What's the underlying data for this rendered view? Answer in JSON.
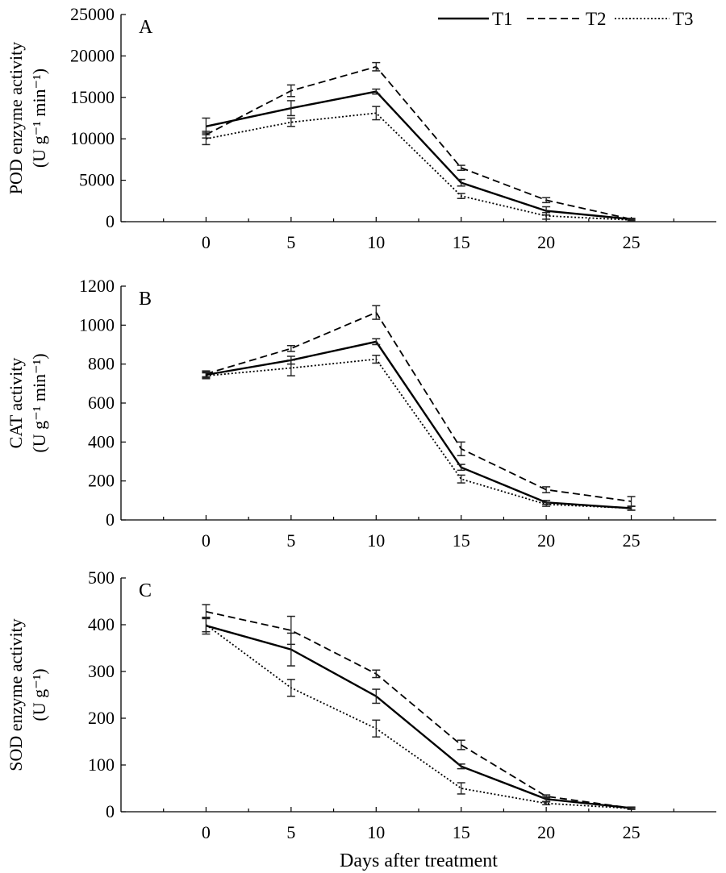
{
  "chart_data": [
    {
      "type": "line",
      "panel_label": "A",
      "ylabel": "POD enzyme activity",
      "ylabel_unit": "(U g⁻¹ min⁻¹)",
      "ylim": [
        0,
        25000
      ],
      "yticks": [
        0,
        5000,
        10000,
        15000,
        20000,
        25000
      ],
      "ytick_labels": [
        "0",
        "5000",
        "10000",
        "15000",
        "20000",
        "25000"
      ],
      "xticks": [
        0,
        5,
        10,
        15,
        20,
        25
      ],
      "xtick_labels": [
        "0",
        "5",
        "10",
        "15",
        "20",
        "25"
      ],
      "x": [
        0,
        5,
        10,
        15,
        20,
        25
      ],
      "series": [
        {
          "name": "T1",
          "values": [
            11500,
            13700,
            15700,
            4700,
            1300,
            300
          ],
          "errors": [
            1000,
            900,
            300,
            400,
            500,
            100
          ]
        },
        {
          "name": "T2",
          "values": [
            10500,
            15800,
            18700,
            6500,
            2600,
            300
          ],
          "errors": [
            400,
            700,
            500,
            300,
            300,
            100
          ]
        },
        {
          "name": "T3",
          "values": [
            10000,
            12000,
            13100,
            3100,
            700,
            200
          ],
          "errors": [
            700,
            500,
            800,
            300,
            400,
            100
          ]
        }
      ]
    },
    {
      "type": "line",
      "panel_label": "B",
      "ylabel": "CAT activity",
      "ylabel_unit": "(U g⁻¹ min⁻¹)",
      "ylim": [
        0,
        1200
      ],
      "yticks": [
        0,
        200,
        400,
        600,
        800,
        1000,
        1200
      ],
      "ytick_labels": [
        "0",
        "200",
        "400",
        "600",
        "800",
        "1000",
        "1200"
      ],
      "xticks": [
        0,
        5,
        10,
        15,
        20,
        25
      ],
      "xtick_labels": [
        "0",
        "5",
        "10",
        "15",
        "20",
        "25"
      ],
      "x": [
        0,
        5,
        10,
        15,
        20,
        25
      ],
      "series": [
        {
          "name": "T1",
          "values": [
            745,
            820,
            915,
            270,
            90,
            60
          ],
          "errors": [
            15,
            20,
            15,
            15,
            10,
            10
          ]
        },
        {
          "name": "T2",
          "values": [
            750,
            880,
            1065,
            365,
            155,
            95
          ],
          "errors": [
            15,
            15,
            35,
            35,
            15,
            25
          ]
        },
        {
          "name": "T3",
          "values": [
            740,
            780,
            825,
            210,
            80,
            60
          ],
          "errors": [
            15,
            40,
            20,
            20,
            10,
            10
          ]
        }
      ]
    },
    {
      "type": "line",
      "panel_label": "C",
      "ylabel": "SOD enzyme activity",
      "ylabel_unit": "(U g⁻¹)",
      "ylim": [
        0,
        500
      ],
      "yticks": [
        0,
        100,
        200,
        300,
        400,
        500
      ],
      "ytick_labels": [
        "0",
        "100",
        "200",
        "300",
        "400",
        "500"
      ],
      "xticks": [
        0,
        5,
        10,
        15,
        20,
        25
      ],
      "xtick_labels": [
        "0",
        "5",
        "10",
        "15",
        "20",
        "25"
      ],
      "x": [
        0,
        5,
        10,
        15,
        20,
        25
      ],
      "xlabel": "Days after treatment",
      "series": [
        {
          "name": "T1",
          "values": [
            398,
            347,
            247,
            97,
            27,
            8
          ],
          "errors": [
            18,
            35,
            15,
            5,
            5,
            2
          ]
        },
        {
          "name": "T2",
          "values": [
            428,
            388,
            295,
            143,
            33,
            8
          ],
          "errors": [
            15,
            30,
            8,
            10,
            3,
            2
          ]
        },
        {
          "name": "T3",
          "values": [
            400,
            265,
            178,
            50,
            18,
            7
          ],
          "errors": [
            15,
            18,
            18,
            12,
            3,
            2
          ]
        }
      ]
    }
  ],
  "legend": {
    "position": "top-right",
    "items": [
      {
        "name": "T1",
        "dash": "solid"
      },
      {
        "name": "T2",
        "dash": "dashed"
      },
      {
        "name": "T3",
        "dash": "dotted"
      }
    ]
  }
}
